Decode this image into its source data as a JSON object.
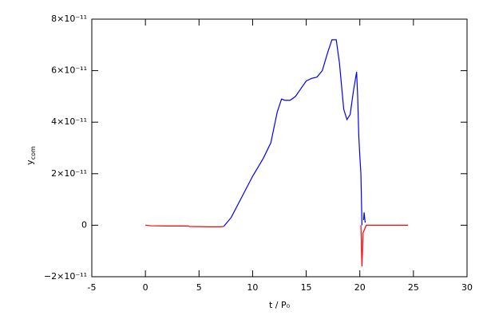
{
  "chart_data": {
    "type": "line",
    "x_label": "t / P₀",
    "y_label": "y",
    "y_label_sub": "com",
    "xlim": [
      -5,
      30
    ],
    "xticks": [
      -5,
      0,
      5,
      10,
      15,
      20,
      25,
      30
    ],
    "ylim": [
      -2e-11,
      8e-11
    ],
    "yticks": [
      {
        "value": -2e-11,
        "label": "−2×10⁻¹¹"
      },
      0,
      {
        "value": 2e-11,
        "label": "2×10⁻¹¹"
      },
      {
        "value": 4e-11,
        "label": "4×10⁻¹¹"
      },
      {
        "value": 6e-11,
        "label": "6×10⁻¹¹"
      },
      {
        "value": 8e-11,
        "label": "8×10⁻¹¹"
      }
    ],
    "series": [
      {
        "color": "#0000ff",
        "x": [
          7.3,
          8,
          9,
          10,
          11,
          11.7,
          12.3,
          12.7,
          13.0,
          13.5,
          14,
          14.5,
          15,
          15.5,
          16,
          16.5,
          17,
          17.4,
          17.8,
          18.1,
          18.5,
          18.8,
          19.1,
          19.4,
          19.7,
          19.8,
          19.9,
          20.0,
          20.1,
          20.2,
          20.3,
          20.35,
          20.4,
          20.5
        ],
        "values": [
          -5e-13,
          3e-12,
          1.1e-11,
          1.9e-11,
          2.6e-11,
          3.2e-11,
          4.4e-11,
          4.9e-11,
          4.85e-11,
          4.85e-11,
          5e-11,
          5.3e-11,
          5.6e-11,
          5.7e-11,
          5.75e-11,
          6e-11,
          6.7e-11,
          7.2e-11,
          7.2e-11,
          6.3e-11,
          4.5e-11,
          4.1e-11,
          4.3e-11,
          5.2e-11,
          5.95e-11,
          5e-11,
          3.5e-11,
          2.7e-11,
          2e-11,
          0,
          null,
          2e-12,
          5e-12,
          1e-12
        ]
      },
      {
        "color": "#ff0000",
        "x": [
          0,
          0.5,
          2,
          4,
          4.1,
          6,
          7,
          7.3,
          7.5,
          20.1,
          20.2,
          20.3,
          20.5,
          20.6,
          22,
          24.5
        ],
        "values": [
          0,
          -2e-13,
          -3e-13,
          -3e-13,
          -5e-13,
          -6e-13,
          -6e-13,
          -5e-13,
          null,
          0,
          -1.6e-11,
          -3e-12,
          -1e-12,
          0,
          0,
          0
        ]
      }
    ]
  }
}
